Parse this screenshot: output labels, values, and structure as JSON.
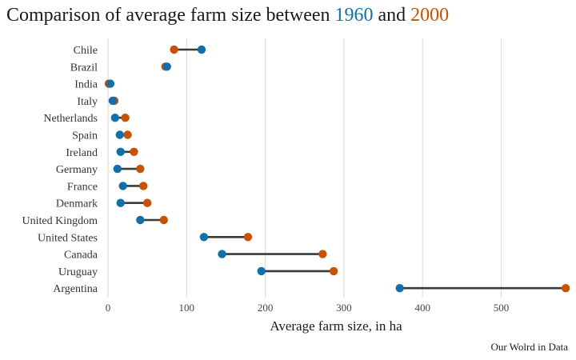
{
  "chart_data": {
    "type": "dumbbell",
    "title_parts": {
      "prefix": "Comparison of average farm size between ",
      "year_start": "1960",
      "joiner": " and ",
      "year_end": "2000"
    },
    "xlabel": "Average farm size, in ha",
    "xlim": [
      0,
      590
    ],
    "xticks": [
      0,
      100,
      200,
      300,
      400,
      500
    ],
    "grid": true,
    "source": "Our Wolrd in Data",
    "colors": {
      "start": "#1170aa",
      "end": "#c85200",
      "segment": "#3a3a3a"
    },
    "categories": [
      "Chile",
      "Brazil",
      "India",
      "Italy",
      "Netherlands",
      "Spain",
      "Ireland",
      "Germany",
      "France",
      "Denmark",
      "United Kingdom",
      "United States",
      "Canada",
      "Uruguay",
      "Argentina"
    ],
    "series": [
      {
        "name": "1960",
        "values": [
          119,
          75,
          3,
          6,
          9,
          15,
          16,
          12,
          19,
          16,
          41,
          122,
          145,
          195,
          371
        ]
      },
      {
        "name": "2000",
        "values": [
          84,
          73,
          1,
          8,
          22,
          25,
          33,
          41,
          45,
          50,
          71,
          178,
          273,
          287,
          582
        ]
      }
    ]
  }
}
